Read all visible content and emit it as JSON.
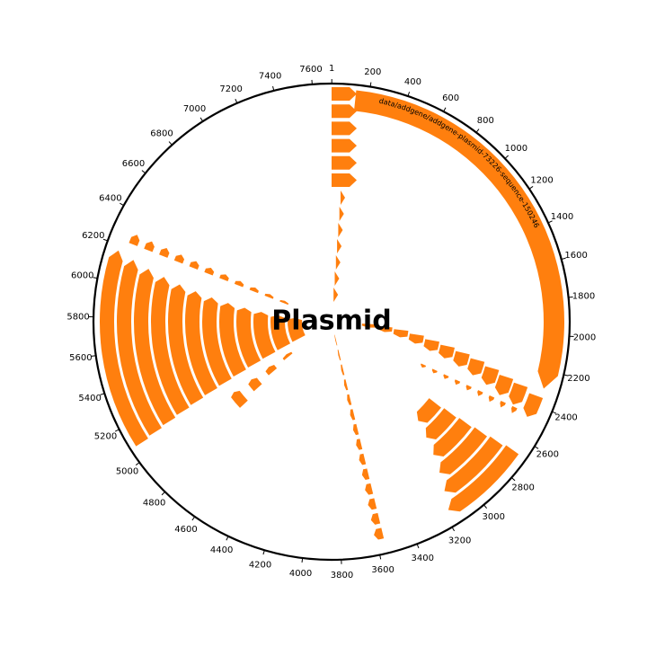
{
  "map": {
    "title": "Plasmid",
    "total_length": 7700,
    "feature_color": "#ff7f0e",
    "outline_color": "#000000",
    "ticks": [
      1,
      200,
      400,
      600,
      800,
      1000,
      1200,
      1400,
      1600,
      1800,
      2000,
      2200,
      2400,
      2600,
      2800,
      3000,
      3200,
      3400,
      3600,
      3800,
      4000,
      4200,
      4400,
      4600,
      4800,
      5000,
      5200,
      5400,
      5600,
      5800,
      6000,
      6200,
      6400,
      6600,
      6800,
      7000,
      7200,
      7400,
      7600
    ],
    "tick_labels": [
      "1",
      "200",
      "400",
      "600",
      "800",
      "1000",
      "1200",
      "1400",
      "1600",
      "1800",
      "2000",
      "2200",
      "2400",
      "2600",
      "2800",
      "3000",
      "3200",
      "3400",
      "3600",
      "3800",
      "4000",
      "4200",
      "4400",
      "4600",
      "4800",
      "5000",
      "5200",
      "5400",
      "5600",
      "5800",
      "6000",
      "6200",
      "6400",
      "6600",
      "6800",
      "7000",
      "7200",
      "7400",
      "7600"
    ],
    "features": [
      {
        "name": "data/addgene/addgene-plasmid-73226-sequence-150246",
        "start": 130,
        "end": 2300,
        "strand": 1,
        "labeled": true
      }
    ]
  }
}
